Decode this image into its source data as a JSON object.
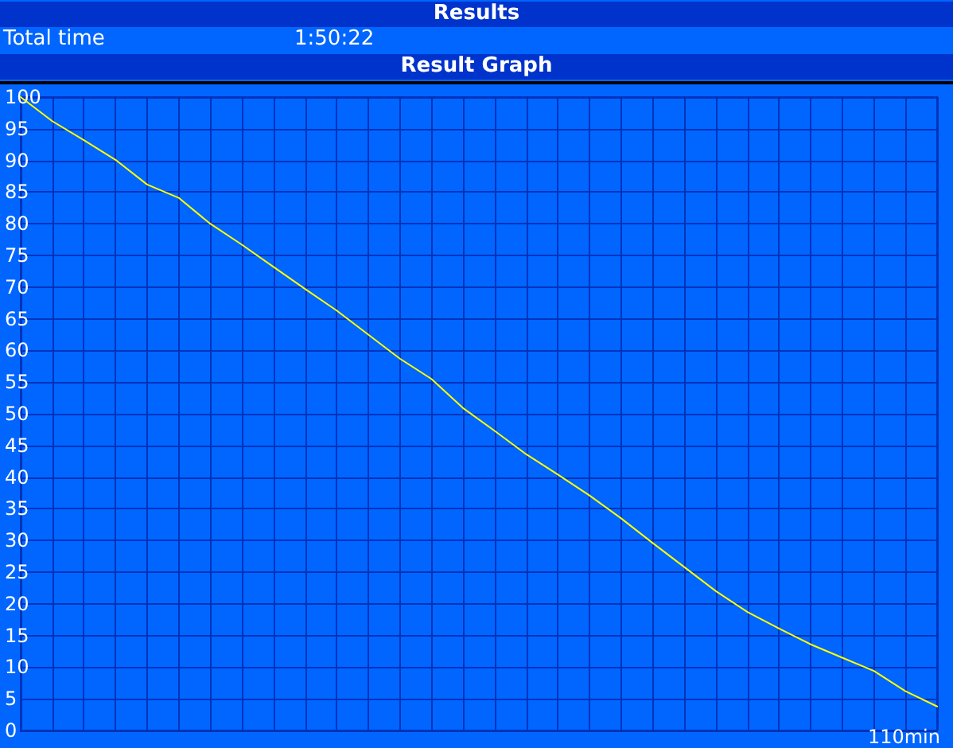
{
  "chart_data": {
    "type": "line",
    "title": "Results",
    "subtitle": "Result Graph",
    "annotations": [
      "Total time",
      "1:50:22",
      "110min"
    ],
    "categories": [
      null,
      null,
      null,
      null,
      null,
      null,
      null,
      null,
      null,
      null,
      null,
      null,
      null,
      null,
      null,
      null,
      null,
      null,
      null,
      null,
      null,
      null,
      null,
      null,
      null,
      null,
      null,
      null,
      null,
      null
    ],
    "series": [
      {
        "color": "#ffff00",
        "values": [
          100,
          96.2,
          93.2,
          90.1,
          86.2,
          84.1,
          80,
          76.7,
          73.2,
          69.7,
          66.3,
          62.5,
          58.7,
          55.5,
          50.9,
          47.3,
          43.6,
          40.4,
          37.1,
          33.5,
          29.6,
          25.8,
          22,
          18.7,
          16.1,
          13.6,
          11.5,
          9.4,
          6.2,
          3.8
        ]
      }
    ],
    "ylim": [
      0,
      100
    ],
    "yticks": [
      0,
      5,
      10,
      15,
      20,
      25,
      30,
      35,
      40,
      45,
      50,
      55,
      60,
      65,
      70,
      75,
      80,
      85,
      90,
      95,
      100
    ],
    "grid": true,
    "marker": "none",
    "line_style": "solid"
  }
}
